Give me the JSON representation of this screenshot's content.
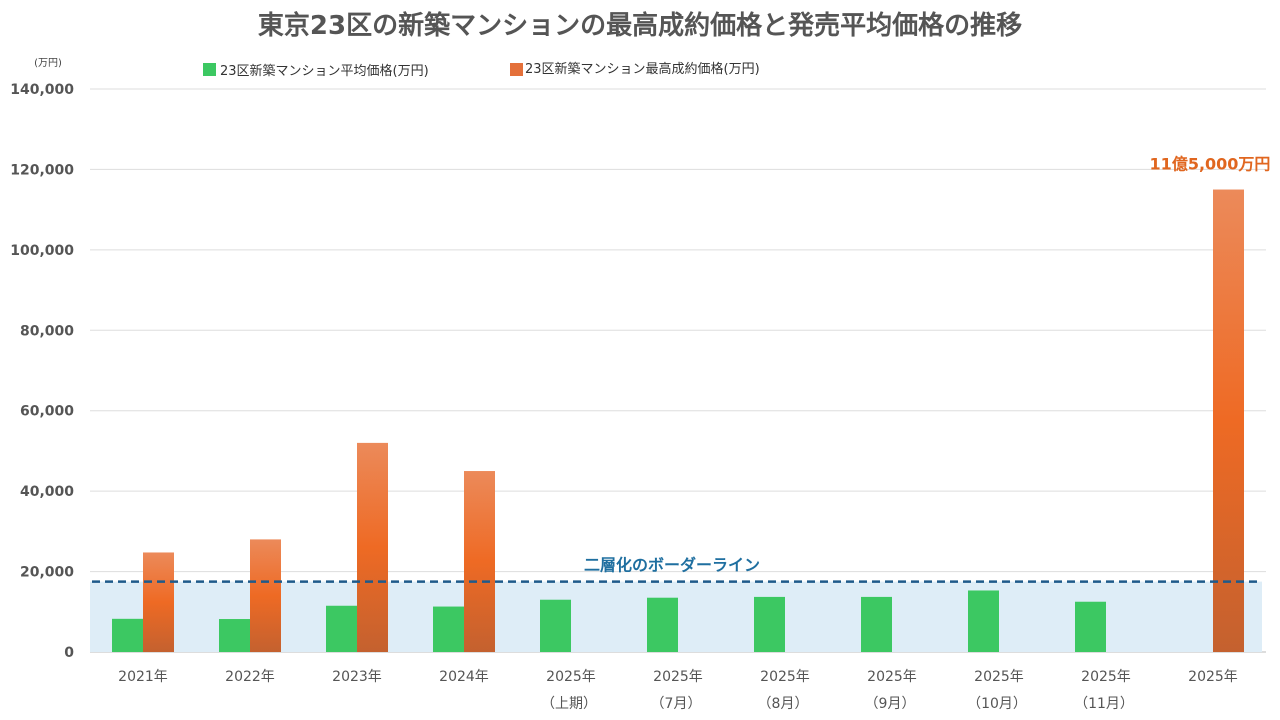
{
  "chart_data": {
    "type": "bar",
    "title": "東京23区の新築マンションの最高成約価格と発売平均価格の推移",
    "ylabel": "(万円)",
    "ylim": [
      0,
      140000
    ],
    "yticks": [
      0,
      20000,
      40000,
      60000,
      80000,
      100000,
      120000,
      140000
    ],
    "ytick_labels": [
      "0",
      "20,000",
      "40,000",
      "60,000",
      "80,000",
      "100,000",
      "120,000",
      "140,000"
    ],
    "grid": true,
    "legend_position": "top",
    "categories": [
      [
        "2021年",
        ""
      ],
      [
        "2022年",
        ""
      ],
      [
        "2023年",
        ""
      ],
      [
        "2024年",
        ""
      ],
      [
        "2025年",
        "（上期）"
      ],
      [
        "2025年",
        "（7月）"
      ],
      [
        "2025年",
        "（8月）"
      ],
      [
        "2025年",
        "（9月）"
      ],
      [
        "2025年",
        "（10月）"
      ],
      [
        "2025年",
        "（11月）"
      ],
      [
        "2025年",
        ""
      ]
    ],
    "series": [
      {
        "name": "23区新築マンション平均価格(万円)",
        "color": "#3cc862",
        "values": [
          8250,
          8200,
          11500,
          11300,
          13000,
          13500,
          13700,
          13700,
          15300,
          12500,
          null
        ]
      },
      {
        "name": "23区新築マンション最高成約価格(万円)",
        "color": "#ec6a28",
        "values": [
          24750,
          28000,
          52000,
          45000,
          null,
          null,
          null,
          null,
          null,
          null,
          115000
        ]
      }
    ],
    "reference_line": {
      "value": 17500,
      "label": "二層化のボーダーライン",
      "color": "#1f5a8a",
      "band_color": "#deedf7"
    },
    "annotations": [
      {
        "category_index": 10,
        "text": "11億5,000万円",
        "color": "#e0661f"
      }
    ]
  }
}
